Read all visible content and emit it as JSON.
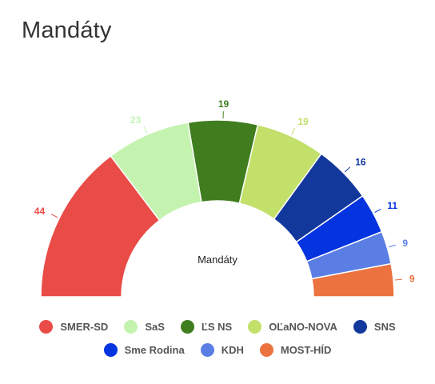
{
  "title": "Mandáty",
  "chart_data": {
    "type": "pie",
    "title": "Mandáty",
    "center_label": "Mandáty",
    "series_name": "Mandáty",
    "categories": [
      "SMER-SD",
      "SaS",
      "ĽS NS",
      "OĽaNO-NOVA",
      "SNS",
      "Sme Rodina",
      "KDH",
      "MOST-HÍD"
    ],
    "values": [
      44,
      23,
      19,
      19,
      16,
      11,
      9,
      9
    ],
    "colors": [
      "#E94B47",
      "#C4F3B0",
      "#3F7D1E",
      "#C2E06A",
      "#13389C",
      "#0433E0",
      "#5B7EE5",
      "#EC723F"
    ],
    "legend_position": "bottom",
    "legend_rows": [
      [
        0,
        1,
        2,
        3,
        4
      ],
      [
        5,
        6,
        7
      ]
    ]
  }
}
